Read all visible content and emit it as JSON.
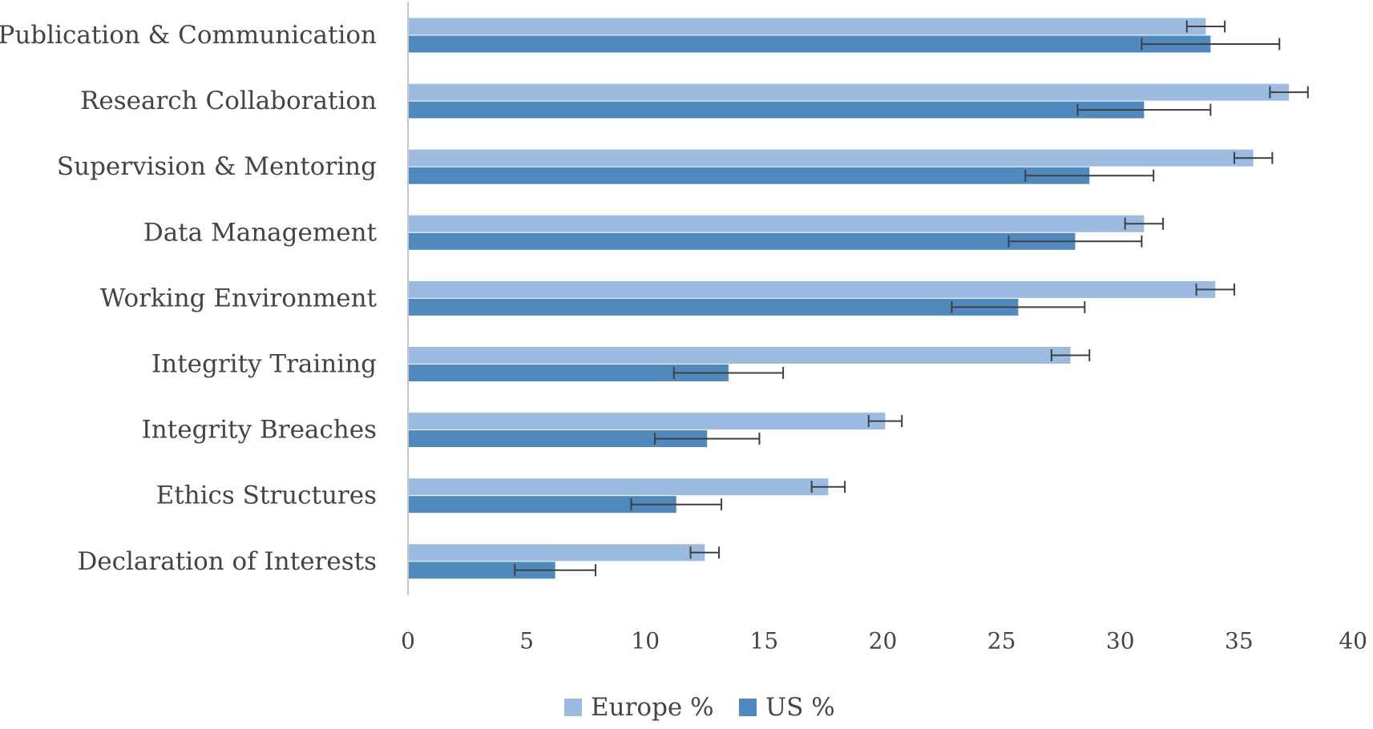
{
  "chart_data": {
    "type": "bar",
    "orientation": "horizontal",
    "title": "",
    "xlabel": "",
    "ylabel": "",
    "categories": [
      "Publication & Communication",
      "Research Collaboration",
      "Supervision & Mentoring",
      "Data Management",
      "Working Environment",
      "Integrity Training",
      "Integrity Breaches",
      "Ethics Structures",
      "Declaration of Interests"
    ],
    "series": [
      {
        "name": "Europe %",
        "color": "#9bbbe0",
        "values": [
          33.6,
          37.1,
          35.6,
          31.0,
          34.0,
          27.9,
          20.1,
          17.7,
          12.5
        ],
        "error": [
          0.8,
          0.8,
          0.8,
          0.8,
          0.8,
          0.8,
          0.7,
          0.7,
          0.6
        ]
      },
      {
        "name": "US %",
        "color": "#4f89bd",
        "values": [
          33.8,
          31.0,
          28.7,
          28.1,
          25.7,
          13.5,
          12.6,
          11.3,
          6.2
        ],
        "error": [
          2.9,
          2.8,
          2.7,
          2.8,
          2.8,
          2.3,
          2.2,
          1.9,
          1.7
        ]
      }
    ],
    "xlim": [
      0,
      40
    ],
    "xticks": [
      "0",
      "5",
      "10",
      "15",
      "20",
      "25",
      "30",
      "35",
      "40"
    ],
    "grid": false,
    "legend": "bottom",
    "error_bar_color": "#404040"
  }
}
